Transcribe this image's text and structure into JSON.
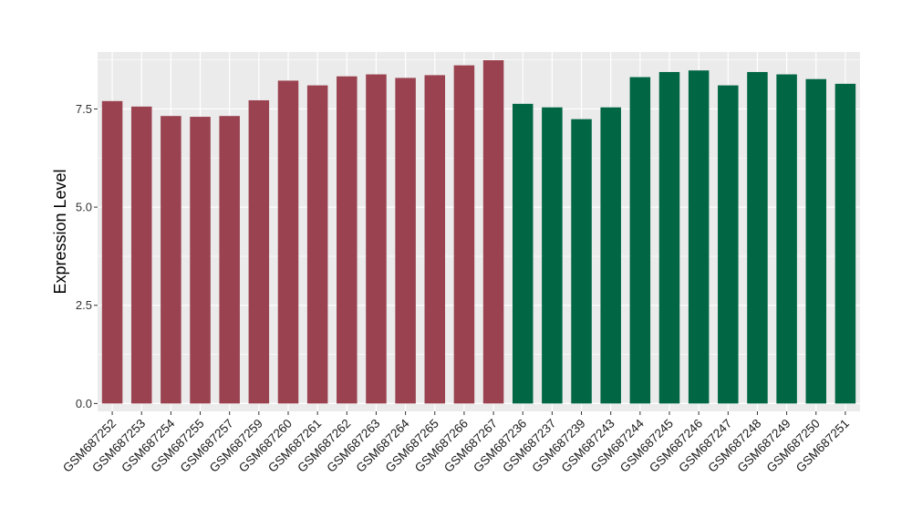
{
  "chart_data": {
    "type": "bar",
    "title": "",
    "xlabel": "",
    "ylabel": "Expression Level",
    "ylim": [
      -0.2,
      8.95
    ],
    "yticks": [
      0.0,
      2.5,
      5.0,
      7.5
    ],
    "ytick_labels": [
      "0.0",
      "2.5",
      "5.0",
      "7.5"
    ],
    "grid": true,
    "legend": "none",
    "panel_background": "#ebebeb",
    "gridline_color": "#ffffff",
    "categories": [
      "GSM687252",
      "GSM687253",
      "GSM687254",
      "GSM687255",
      "GSM687257",
      "GSM687259",
      "GSM687260",
      "GSM687261",
      "GSM687262",
      "GSM687263",
      "GSM687264",
      "GSM687265",
      "GSM687266",
      "GSM687267",
      "GSM687236",
      "GSM687237",
      "GSM687239",
      "GSM687243",
      "GSM687244",
      "GSM687245",
      "GSM687246",
      "GSM687247",
      "GSM687248",
      "GSM687249",
      "GSM687250",
      "GSM687251"
    ],
    "values": [
      7.7,
      7.56,
      7.32,
      7.3,
      7.32,
      7.72,
      8.22,
      8.1,
      8.33,
      8.38,
      8.29,
      8.36,
      8.61,
      8.74,
      7.63,
      7.54,
      7.24,
      7.54,
      8.31,
      8.44,
      8.48,
      8.1,
      8.44,
      8.38,
      8.26,
      8.14
    ],
    "bar_colors": [
      "#9a4250",
      "#9a4250",
      "#9a4250",
      "#9a4250",
      "#9a4250",
      "#9a4250",
      "#9a4250",
      "#9a4250",
      "#9a4250",
      "#9a4250",
      "#9a4250",
      "#9a4250",
      "#9a4250",
      "#9a4250",
      "#006644",
      "#006644",
      "#006644",
      "#006644",
      "#006644",
      "#006644",
      "#006644",
      "#006644",
      "#006644",
      "#006644",
      "#006644",
      "#006644"
    ]
  }
}
